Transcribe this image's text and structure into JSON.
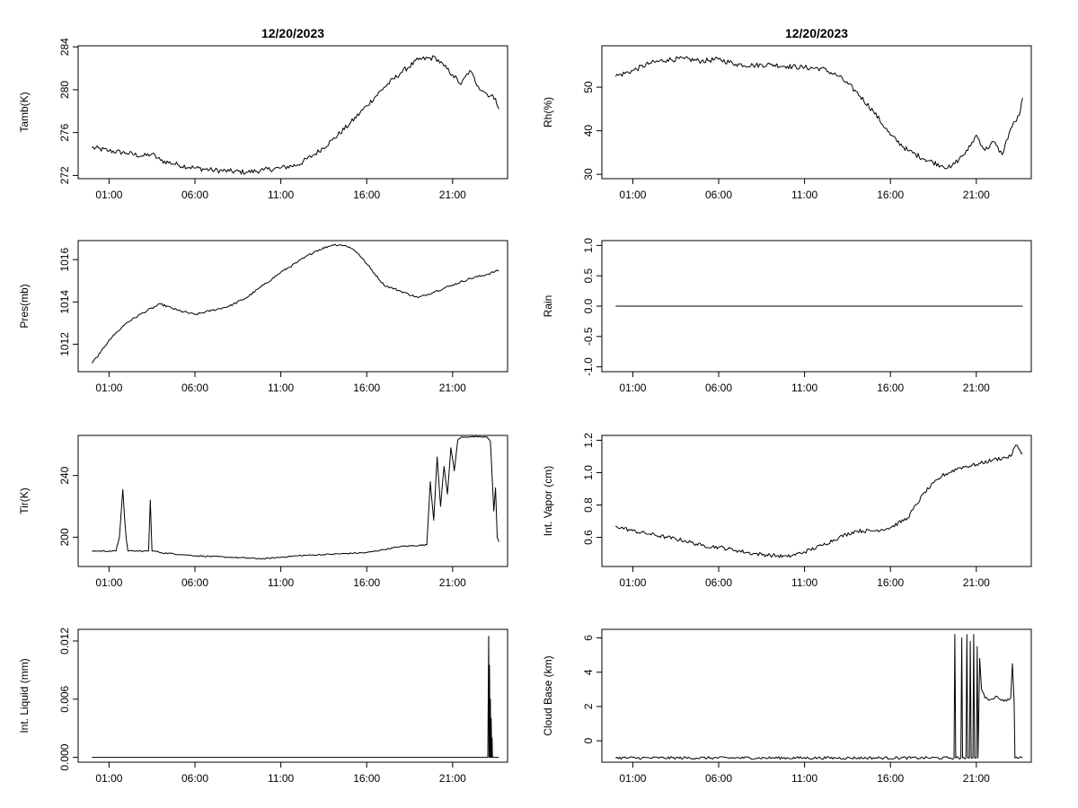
{
  "chart_data": [
    {
      "type": "line",
      "title": "12/20/2023",
      "ylabel": "Tamb(K)",
      "xlabel": "",
      "xlim": [
        -0.8,
        24.2
      ],
      "ylim": [
        271.7,
        284.1
      ],
      "x_ticks": [
        {
          "value": 1,
          "label": "01:00"
        },
        {
          "value": 6,
          "label": "06:00"
        },
        {
          "value": 11,
          "label": "11:00"
        },
        {
          "value": 16,
          "label": "16:00"
        },
        {
          "value": 21,
          "label": "21:00"
        }
      ],
      "y_ticks": [
        {
          "value": 272,
          "label": "272"
        },
        {
          "value": 276,
          "label": "276"
        },
        {
          "value": 280,
          "label": "280"
        },
        {
          "value": 284,
          "label": "284"
        }
      ],
      "noise": 0.25,
      "series": [
        {
          "name": "Tamb",
          "x": [
            0,
            1,
            2,
            3,
            3.5,
            4,
            5,
            6,
            7,
            8,
            9,
            10,
            11,
            12,
            13,
            14,
            15,
            16,
            17,
            18,
            19,
            20,
            20.5,
            21,
            21.5,
            22,
            22.5,
            23,
            23.5,
            23.7
          ],
          "y": [
            274.6,
            274.3,
            274.1,
            273.8,
            274.0,
            273.4,
            273.0,
            272.7,
            272.5,
            272.4,
            272.3,
            272.5,
            272.7,
            273.0,
            274.0,
            275.3,
            276.8,
            278.5,
            280.2,
            281.6,
            282.8,
            283.0,
            282.2,
            281.4,
            280.5,
            281.8,
            280.3,
            279.6,
            279.2,
            278.2
          ]
        }
      ]
    },
    {
      "type": "line",
      "title": "12/20/2023",
      "ylabel": "Rh(%)",
      "xlabel": "",
      "xlim": [
        -0.8,
        24.2
      ],
      "ylim": [
        29,
        59.5
      ],
      "x_ticks": [
        {
          "value": 1,
          "label": "01:00"
        },
        {
          "value": 6,
          "label": "06:00"
        },
        {
          "value": 11,
          "label": "11:00"
        },
        {
          "value": 16,
          "label": "16:00"
        },
        {
          "value": 21,
          "label": "21:00"
        }
      ],
      "y_ticks": [
        {
          "value": 30,
          "label": "30"
        },
        {
          "value": 40,
          "label": "40"
        },
        {
          "value": 50,
          "label": "50"
        }
      ],
      "noise": 0.6,
      "series": [
        {
          "name": "Rh",
          "x": [
            0,
            1,
            2,
            3,
            4,
            5,
            6,
            7,
            8,
            9,
            10,
            11,
            12,
            13,
            14,
            15,
            16,
            17,
            18,
            19,
            19.5,
            20,
            20.5,
            21,
            21.5,
            22,
            22.5,
            23,
            23.5,
            23.7
          ],
          "y": [
            52.5,
            53.8,
            55.5,
            56.3,
            56.5,
            56.0,
            56.4,
            55.3,
            55.0,
            55.2,
            54.8,
            54.5,
            54.3,
            52.5,
            49.0,
            44.5,
            39.0,
            35.5,
            33.5,
            32.0,
            31.5,
            33.5,
            35.5,
            39.0,
            35.5,
            37.5,
            34.5,
            40.5,
            43.5,
            47.5
          ]
        }
      ]
    },
    {
      "type": "line",
      "title": "",
      "ylabel": "Pres(mb)",
      "xlabel": "",
      "xlim": [
        -0.8,
        24.2
      ],
      "ylim": [
        1010.7,
        1016.9
      ],
      "x_ticks": [
        {
          "value": 1,
          "label": "01:00"
        },
        {
          "value": 6,
          "label": "06:00"
        },
        {
          "value": 11,
          "label": "11:00"
        },
        {
          "value": 16,
          "label": "16:00"
        },
        {
          "value": 21,
          "label": "21:00"
        }
      ],
      "y_ticks": [
        {
          "value": 1012,
          "label": "1012"
        },
        {
          "value": 1014,
          "label": "1014"
        },
        {
          "value": 1016,
          "label": "1016"
        }
      ],
      "noise": 0.05,
      "series": [
        {
          "name": "Pres",
          "x": [
            0,
            0.5,
            1,
            1.5,
            2,
            3,
            4,
            5,
            6,
            7,
            8,
            9,
            10,
            11,
            12,
            13,
            14,
            14.5,
            15,
            15.5,
            16,
            17,
            18,
            19,
            20,
            21,
            22,
            23,
            23.7
          ],
          "y": [
            1011.1,
            1011.6,
            1012.2,
            1012.6,
            1013.0,
            1013.5,
            1013.9,
            1013.6,
            1013.4,
            1013.6,
            1013.8,
            1014.2,
            1014.8,
            1015.4,
            1015.9,
            1016.4,
            1016.7,
            1016.7,
            1016.6,
            1016.3,
            1015.8,
            1014.8,
            1014.5,
            1014.2,
            1014.5,
            1014.8,
            1015.1,
            1015.3,
            1015.5
          ]
        }
      ]
    },
    {
      "type": "line",
      "title": "",
      "ylabel": "Rain",
      "xlabel": "",
      "xlim": [
        -0.8,
        24.2
      ],
      "ylim": [
        -1.08,
        1.08
      ],
      "x_ticks": [
        {
          "value": 1,
          "label": "01:00"
        },
        {
          "value": 6,
          "label": "06:00"
        },
        {
          "value": 11,
          "label": "11:00"
        },
        {
          "value": 16,
          "label": "16:00"
        },
        {
          "value": 21,
          "label": "21:00"
        }
      ],
      "y_ticks": [
        {
          "value": -1.0,
          "label": "-1.0"
        },
        {
          "value": -0.5,
          "label": "-0.5"
        },
        {
          "value": 0.0,
          "label": "0.0"
        },
        {
          "value": 0.5,
          "label": "0.5"
        },
        {
          "value": 1.0,
          "label": "1.0"
        }
      ],
      "noise": 0,
      "series": [
        {
          "name": "Rain",
          "x": [
            0,
            23.7
          ],
          "y": [
            0,
            0
          ]
        }
      ]
    },
    {
      "type": "line",
      "title": "",
      "ylabel": "Tir(K)",
      "xlabel": "",
      "xlim": [
        -0.8,
        24.2
      ],
      "ylim": [
        181,
        266
      ],
      "x_ticks": [
        {
          "value": 1,
          "label": "01:00"
        },
        {
          "value": 6,
          "label": "06:00"
        },
        {
          "value": 11,
          "label": "11:00"
        },
        {
          "value": 16,
          "label": "16:00"
        },
        {
          "value": 21,
          "label": "21:00"
        }
      ],
      "y_ticks": [
        {
          "value": 200,
          "label": "200"
        },
        {
          "value": 240,
          "label": "240"
        }
      ],
      "noise": 0.4,
      "series": [
        {
          "name": "Tir",
          "x": [
            0,
            1.0,
            1.4,
            1.6,
            1.8,
            1.9,
            2.0,
            2.1,
            3.0,
            3.3,
            3.4,
            3.5,
            3.6,
            3.7,
            4,
            6,
            8,
            10,
            11,
            12,
            14,
            16,
            17,
            18,
            19.5,
            19.7,
            19.9,
            20.1,
            20.3,
            20.5,
            20.7,
            20.9,
            21.1,
            21.3,
            21.5,
            21.7,
            22.0,
            22.5,
            23.0,
            23.2,
            23.4,
            23.5,
            23.6,
            23.7
          ],
          "y": [
            191,
            191,
            191,
            200,
            231,
            213,
            199,
            191,
            191,
            191,
            224,
            191,
            191,
            191,
            190,
            188,
            187,
            186,
            187,
            188,
            189,
            190,
            192,
            194,
            195,
            236,
            211,
            252,
            220,
            246,
            228,
            258,
            243,
            263,
            265,
            265,
            265,
            265,
            265,
            262,
            217,
            232,
            200,
            197
          ]
        }
      ]
    },
    {
      "type": "line",
      "title": "",
      "ylabel": "Int. Vapor (cm)",
      "xlabel": "",
      "xlim": [
        -0.8,
        24.2
      ],
      "ylim": [
        0.42,
        1.23
      ],
      "x_ticks": [
        {
          "value": 1,
          "label": "01:00"
        },
        {
          "value": 6,
          "label": "06:00"
        },
        {
          "value": 11,
          "label": "11:00"
        },
        {
          "value": 16,
          "label": "16:00"
        },
        {
          "value": 21,
          "label": "21:00"
        }
      ],
      "y_ticks": [
        {
          "value": 0.6,
          "label": "0.6"
        },
        {
          "value": 0.8,
          "label": "0.8"
        },
        {
          "value": 1.0,
          "label": "1.0"
        },
        {
          "value": 1.2,
          "label": "1.2"
        }
      ],
      "noise": 0.012,
      "series": [
        {
          "name": "Int. Vapor",
          "x": [
            0,
            1,
            2,
            3,
            4,
            5,
            6,
            7,
            8,
            9,
            10,
            11,
            12,
            13,
            14,
            15,
            16,
            17,
            18,
            19,
            20,
            21,
            22,
            23,
            23.3,
            23.7
          ],
          "y": [
            0.67,
            0.64,
            0.62,
            0.6,
            0.58,
            0.55,
            0.54,
            0.52,
            0.5,
            0.49,
            0.48,
            0.51,
            0.55,
            0.6,
            0.64,
            0.64,
            0.66,
            0.72,
            0.88,
            0.98,
            1.03,
            1.05,
            1.08,
            1.1,
            1.17,
            1.12
          ]
        }
      ]
    },
    {
      "type": "line",
      "title": "",
      "ylabel": "Int. Liquid (mm)",
      "xlabel": "",
      "xlim": [
        -0.8,
        24.2
      ],
      "ylim": [
        -0.0005,
        0.0132
      ],
      "x_ticks": [
        {
          "value": 1,
          "label": "01:00"
        },
        {
          "value": 6,
          "label": "06:00"
        },
        {
          "value": 11,
          "label": "11:00"
        },
        {
          "value": 16,
          "label": "16:00"
        },
        {
          "value": 21,
          "label": "21:00"
        }
      ],
      "y_ticks": [
        {
          "value": 0.0,
          "label": "0.000"
        },
        {
          "value": 0.006,
          "label": "0.006"
        },
        {
          "value": 0.012,
          "label": "0.012"
        }
      ],
      "noise": 0,
      "series": [
        {
          "name": "Int. Liquid",
          "x": [
            0,
            23.05,
            23.1,
            23.12,
            23.15,
            23.18,
            23.2,
            23.22,
            23.25,
            23.28,
            23.3,
            23.32,
            23.7
          ],
          "y": [
            0,
            0,
            0.0125,
            0,
            0.0095,
            0,
            0.006,
            0,
            0.004,
            0,
            0.002,
            0,
            0
          ]
        }
      ]
    },
    {
      "type": "line",
      "title": "",
      "ylabel": "Cloud Base (km)",
      "xlabel": "",
      "xlim": [
        -0.8,
        24.2
      ],
      "ylim": [
        -1.25,
        6.5
      ],
      "x_ticks": [
        {
          "value": 1,
          "label": "01:00"
        },
        {
          "value": 6,
          "label": "06:00"
        },
        {
          "value": 11,
          "label": "11:00"
        },
        {
          "value": 16,
          "label": "16:00"
        },
        {
          "value": 21,
          "label": "21:00"
        }
      ],
      "y_ticks": [
        {
          "value": 0,
          "label": "0"
        },
        {
          "value": 2,
          "label": "2"
        },
        {
          "value": 4,
          "label": "4"
        },
        {
          "value": 6,
          "label": "6"
        }
      ],
      "noise": 0.08,
      "series": [
        {
          "name": "Cloud Base",
          "x": [
            0,
            19.7,
            19.75,
            19.8,
            20.1,
            20.15,
            20.2,
            20.4,
            20.45,
            20.5,
            20.6,
            20.65,
            20.7,
            20.8,
            20.85,
            20.9,
            21.0,
            21.05,
            21.1,
            21.2,
            21.3,
            21.5,
            21.8,
            22.2,
            22.6,
            23.0,
            23.1,
            23.2,
            23.25,
            23.7
          ],
          "y": [
            -1,
            -1,
            6.2,
            -1,
            -1,
            6.0,
            -1,
            -1,
            6.2,
            -1,
            -1,
            5.8,
            -1,
            -1,
            6.2,
            -1,
            -1,
            5.5,
            -1,
            4.8,
            3.0,
            2.5,
            2.4,
            2.6,
            2.3,
            2.5,
            4.5,
            2.3,
            -1,
            -1
          ]
        }
      ]
    }
  ]
}
